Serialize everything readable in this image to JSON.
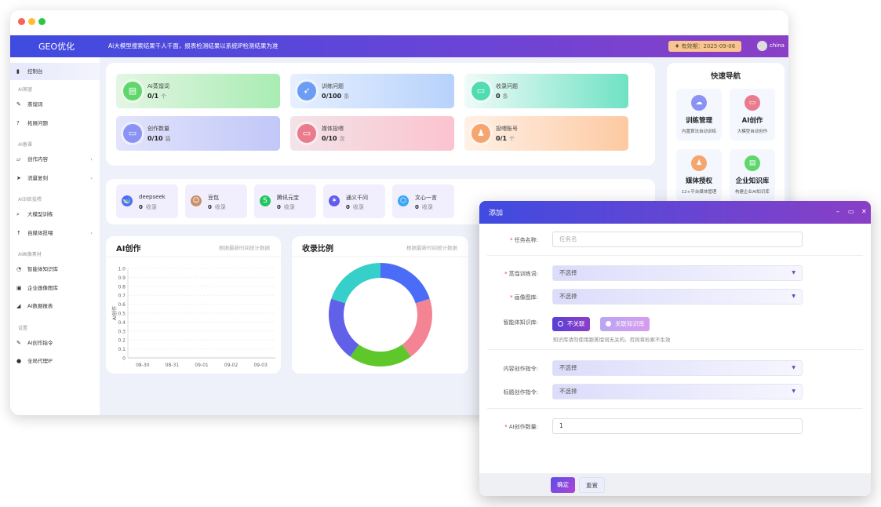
{
  "colors": {
    "accent_start": "#3f4be0",
    "accent_end": "#8a3fc6",
    "validity_badge": "#fbc38e"
  },
  "header": {
    "logo": "GEO优化",
    "slogan": "Ai大模型搜索结果千人千面，报表检测结果以系统IP检测结果为准",
    "validity": "有效期：2025-09-06",
    "validity_icon": "shield-icon",
    "user": "china"
  },
  "sidebar": {
    "dashboard": "控制台",
    "groups": [
      {
        "title": "AI蒸馏",
        "items": [
          {
            "label": "蒸馏词",
            "icon": "tag-icon"
          },
          {
            "label": "拓展问题",
            "icon": "question-icon"
          }
        ]
      },
      {
        "title": "AI备课",
        "items": [
          {
            "label": "创作内容",
            "icon": "folder-icon"
          },
          {
            "label": "流量复刻",
            "icon": "rocket-icon"
          }
        ]
      },
      {
        "title": "AI训练投喂",
        "items": [
          {
            "label": "大模型训练",
            "icon": "search-icon"
          },
          {
            "label": "自媒体投喂",
            "icon": "upload-icon"
          }
        ]
      },
      {
        "title": "AI画像素材",
        "items": [
          {
            "label": "智能体知识库",
            "icon": "library-icon"
          },
          {
            "label": "企业画像图库",
            "icon": "image-icon"
          },
          {
            "label": "AI数据报表",
            "icon": "signal-icon"
          }
        ]
      },
      {
        "title": "设置",
        "items": [
          {
            "label": "AI创作指令",
            "icon": "tag-icon"
          },
          {
            "label": "全局代理IP",
            "icon": "globe-icon"
          }
        ]
      }
    ]
  },
  "stats": [
    {
      "label": "AI蒸馏词",
      "value": "0/1",
      "unit": "个",
      "color": "#5fd76a"
    },
    {
      "label": "训练问题",
      "value": "0/100",
      "unit": "条",
      "color": "#6d9cf5"
    },
    {
      "label": "收录问题",
      "value": "0",
      "unit": "条",
      "color": "#4fdcb0"
    },
    {
      "label": "创作数量",
      "value": "0/10",
      "unit": "篇",
      "color": "#8a92f3"
    },
    {
      "label": "媒体投喂",
      "value": "0/10",
      "unit": "次",
      "color": "#ea7b8d"
    },
    {
      "label": "投喂账号",
      "value": "0/1",
      "unit": "个",
      "color": "#f7a56f"
    }
  ],
  "models": [
    {
      "name": "deepseek",
      "value": "0",
      "unit": "收录",
      "color": "#4d6bfe"
    },
    {
      "name": "豆包",
      "value": "0",
      "unit": "收录",
      "color": "#c98f6a"
    },
    {
      "name": "腾讯元宝",
      "value": "0",
      "unit": "收录",
      "color": "#22c55e"
    },
    {
      "name": "通义千问",
      "value": "0",
      "unit": "收录",
      "color": "#615ced"
    },
    {
      "name": "文心一言",
      "value": "0",
      "unit": "收录",
      "color": "#3aa6f5"
    }
  ],
  "quick_nav": {
    "title": "快速导航",
    "items": [
      {
        "title": "训练管理",
        "sub": "内置算法自动训练",
        "color": "#8a92f3"
      },
      {
        "title": "AI创作",
        "sub": "大模型自动创作",
        "color": "#ea7b8d"
      },
      {
        "title": "媒体授权",
        "sub": "12+平台媒体管理",
        "color": "#f7a56f"
      },
      {
        "title": "企业知识库",
        "sub": "构建企业AI知识库",
        "color": "#5fd76a"
      }
    ]
  },
  "chart_data": [
    {
      "type": "line",
      "title": "AI创作",
      "subtitle": "根据最新时间统计数据",
      "ylabel": "AI创作",
      "categories": [
        "08-30",
        "08-31",
        "09-01",
        "09-02",
        "09-03"
      ],
      "yticks": [
        "0",
        "0.1",
        "0.2",
        "0.3",
        "0.4",
        "0.5",
        "0.6",
        "0.7",
        "0.8",
        "0.9",
        "1.0"
      ],
      "ylim": [
        0,
        1
      ],
      "series": [],
      "grid": true
    },
    {
      "type": "pie",
      "title": "收录比例",
      "subtitle": "根据最新时间统计数据",
      "donut": true,
      "values": [
        1,
        1,
        1,
        1,
        1
      ],
      "colors": [
        "#4a6cf7",
        "#f48493",
        "#5ec72a",
        "#6060e8",
        "#37cfc9"
      ]
    }
  ],
  "dialog": {
    "title": "添加",
    "task_name": {
      "label": "任务名称:",
      "placeholder": "任务名",
      "value": ""
    },
    "distill_words": {
      "label": "蒸馏训练词:",
      "value": "不选择"
    },
    "image_library": {
      "label": "画像图库:",
      "value": "不选择"
    },
    "knowledge": {
      "label": "智能体知识库:",
      "options": [
        "不关联",
        "关联知识库"
      ],
      "selected": "不关联",
      "hint": "知识库请勿使用跟蒸馏词无关的。否则将检索不生效"
    },
    "content_prompt": {
      "label": "内容创作指令:",
      "value": "不选择"
    },
    "title_prompt": {
      "label": "标题创作指令:",
      "value": "不选择"
    },
    "ai_count": {
      "label": "AI创作数量:",
      "value": "1"
    },
    "confirm": "确定",
    "reset": "重置"
  }
}
